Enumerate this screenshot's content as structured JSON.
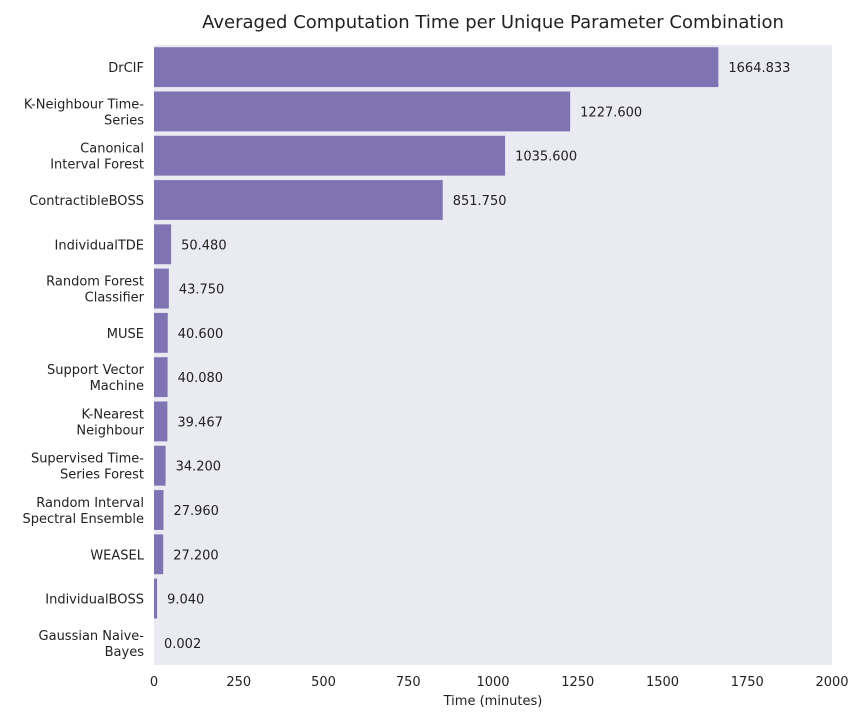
{
  "chart_data": {
    "type": "bar",
    "orientation": "horizontal",
    "title": "Averaged Computation Time per Unique Parameter Combination",
    "xlabel": "Time (minutes)",
    "ylabel": "",
    "xlim": [
      0,
      2000
    ],
    "xticks": [
      0,
      250,
      500,
      750,
      1000,
      1250,
      1500,
      1750,
      2000
    ],
    "grid": false,
    "bar_color": "#8073B3",
    "background_color": "#EAEAF2",
    "categories": [
      [
        "DrCIF"
      ],
      [
        "K-Neighbour Time-",
        "Series"
      ],
      [
        "Canonical",
        "Interval Forest"
      ],
      [
        "ContractibleBOSS"
      ],
      [
        "IndividualTDE"
      ],
      [
        "Random Forest",
        "Classifier"
      ],
      [
        "MUSE"
      ],
      [
        "Support Vector",
        "Machine"
      ],
      [
        "K-Nearest",
        "Neighbour"
      ],
      [
        "Supervised Time-",
        "Series Forest"
      ],
      [
        "Random Interval",
        "Spectral Ensemble"
      ],
      [
        "WEASEL"
      ],
      [
        "IndividualBOSS"
      ],
      [
        "Gaussian Naive-",
        "Bayes"
      ]
    ],
    "values": [
      1664.833,
      1227.6,
      1035.6,
      851.75,
      50.48,
      43.75,
      40.6,
      40.08,
      39.467,
      34.2,
      27.96,
      27.2,
      9.04,
      0.002
    ],
    "value_labels": [
      "1664.833",
      "1227.600",
      "1035.600",
      "851.750",
      "50.480",
      "43.750",
      "40.600",
      "40.080",
      "39.467",
      "34.200",
      "27.960",
      "27.200",
      "9.040",
      "0.002"
    ]
  }
}
